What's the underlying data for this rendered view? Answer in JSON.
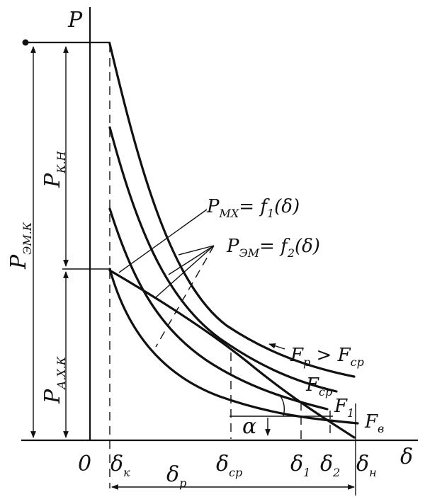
{
  "axes": {
    "y_label": "P",
    "x_label": "δ",
    "origin": "0"
  },
  "x_ticks": {
    "dk": {
      "main": "δ",
      "sub": "к"
    },
    "dcp": {
      "main": "δ",
      "sub": "ср"
    },
    "d1": {
      "main": "δ",
      "sub": "1"
    },
    "d2": {
      "main": "δ",
      "sub": "2"
    },
    "dh": {
      "main": "δ",
      "sub": "н"
    }
  },
  "dims": {
    "p_emk": {
      "main": "P",
      "sub": "ЭМ.К"
    },
    "p_kh": {
      "main": "P",
      "sub": "К.Н"
    },
    "p_axk": {
      "main": "P",
      "sub": "А.Х.К"
    },
    "delta_p": {
      "main": "δ",
      "sub": "р"
    }
  },
  "annotations": {
    "f1_main": "P",
    "f1_sub": "МХ",
    "f1_rest": "= f",
    "f1_idx": "1",
    "f1_arg": "(δ)",
    "f2_main": "P",
    "f2_sub": "ЭМ",
    "f2_rest": "= f",
    "f2_idx": "2",
    "f2_arg": "(δ)",
    "alpha": "α"
  },
  "curve_labels": {
    "fp": {
      "main": "F",
      "sub": "р",
      "rest": " > F",
      "sub2": "ср"
    },
    "fcp": {
      "main": "F",
      "sub": "ср"
    },
    "f1": {
      "main": "F",
      "sub": "1"
    },
    "fb": {
      "main": "F",
      "sub": "в"
    }
  }
}
